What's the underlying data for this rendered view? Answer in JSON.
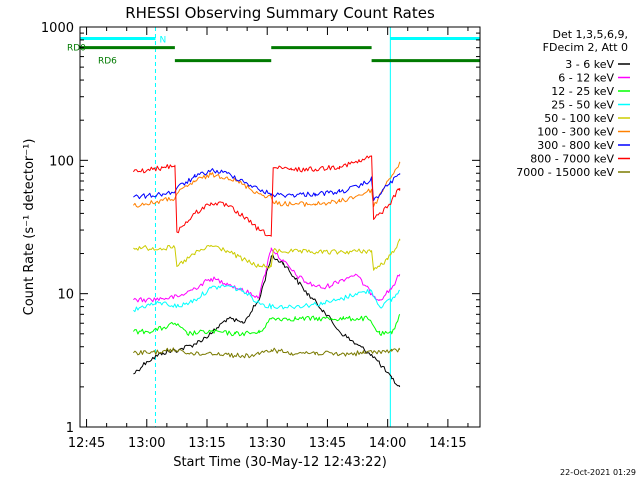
{
  "chart_data": {
    "type": "line",
    "title": "RHESSI Observing Summary Count Rates",
    "xlabel": "Start Time (30-May-12 12:43:22)",
    "ylabel": "Count Rate (s⁻¹ detector⁻¹)",
    "yscale": "log",
    "ylim": [
      1,
      1000
    ],
    "xlim": [
      "12:43:22",
      "14:23:00"
    ],
    "xticks": [
      "12:45",
      "13:00",
      "13:15",
      "13:30",
      "13:45",
      "14:00",
      "14:15"
    ],
    "yticks": [
      "1",
      "10",
      "100",
      "1000"
    ],
    "legend_header": [
      "Det 1,3,5,6,9,",
      "FDecim 2, Att 0"
    ],
    "legend_placement": "right",
    "timestamp": "22-Oct-2021 01:29",
    "night_intervals": [
      {
        "name": "N",
        "color": "#00ffff",
        "start": "12:43:22",
        "end": "13:02:10"
      },
      {
        "name": "",
        "color": "#00ffff",
        "start": "14:00:40",
        "end": "14:23:00"
      }
    ],
    "flags": [
      {
        "name": "RD0",
        "color": "#007a00",
        "level": 700,
        "intervals": [
          [
            "12:43:22",
            "13:07:00"
          ],
          [
            "13:31:00",
            "13:56:00"
          ]
        ]
      },
      {
        "name": "RD6",
        "color": "#007a00",
        "level": 560,
        "intervals": [
          [
            "13:07:00",
            "13:31:00"
          ],
          [
            "13:56:00",
            "14:23:00"
          ]
        ]
      }
    ],
    "data_gaps": [
      [
        "12:43:22",
        "12:56:30"
      ],
      [
        "14:03:30",
        "14:23:00"
      ]
    ],
    "series": [
      {
        "name": "3 - 6 keV",
        "color": "#000000",
        "x": [
          "12:56:40",
          "13:00",
          "13:04",
          "13:08",
          "13:12",
          "13:16",
          "13:20",
          "13:24",
          "13:28",
          "13:31",
          "13:34",
          "13:37",
          "13:40",
          "13:44",
          "13:48",
          "13:52",
          "13:56",
          "13:58",
          "14:01",
          "14:03"
        ],
        "values": [
          2.5,
          3.1,
          3.6,
          3.8,
          4.2,
          5.0,
          6.5,
          6.0,
          9.0,
          19.0,
          17.0,
          13.0,
          10.0,
          7.5,
          5.2,
          4.2,
          3.5,
          3.0,
          2.3,
          2.0
        ]
      },
      {
        "name": "6 - 12 keV",
        "color": "#ff00ff",
        "x": [
          "12:56:40",
          "13:00",
          "13:04",
          "13:08",
          "13:12",
          "13:16",
          "13:20",
          "13:24",
          "13:28",
          "13:31",
          "13:34",
          "13:37",
          "13:40",
          "13:44",
          "13:48",
          "13:52",
          "13:56",
          "13:58",
          "14:01",
          "14:03"
        ],
        "values": [
          9.0,
          9.0,
          9.2,
          9.5,
          11.0,
          13.0,
          12.0,
          10.5,
          9.5,
          22.0,
          17.5,
          14.0,
          12.0,
          11.0,
          12.5,
          14.0,
          10.0,
          9.0,
          11.0,
          14.0
        ]
      },
      {
        "name": "12 - 25 keV",
        "color": "#00ff00",
        "x": [
          "12:56:40",
          "13:00",
          "13:04",
          "13:07",
          "13:10",
          "13:16",
          "13:22",
          "13:28",
          "13:31",
          "13:37",
          "13:43",
          "13:49",
          "13:55",
          "13:58",
          "14:01",
          "14:03"
        ],
        "values": [
          5.2,
          5.2,
          5.5,
          6.0,
          5.0,
          5.2,
          5.0,
          5.1,
          6.5,
          6.5,
          6.5,
          6.5,
          6.5,
          5.0,
          5.0,
          7.0
        ]
      },
      {
        "name": "25 - 50 keV",
        "color": "#00ffff",
        "x": [
          "12:56:40",
          "13:00",
          "13:04",
          "13:08",
          "13:12",
          "13:16",
          "13:20",
          "13:24",
          "13:28",
          "13:31",
          "13:36",
          "13:40",
          "13:44",
          "13:48",
          "13:52",
          "13:56",
          "13:58",
          "14:01",
          "14:03"
        ],
        "values": [
          7.5,
          8.2,
          8.5,
          8.0,
          9.0,
          11.0,
          11.5,
          10.5,
          8.5,
          8.0,
          8.0,
          8.2,
          8.5,
          9.0,
          10.0,
          10.5,
          8.0,
          9.0,
          10.5
        ]
      },
      {
        "name": "50 - 100 keV",
        "color": "#cccc00",
        "x": [
          "12:56:40",
          "13:00",
          "13:07",
          "13:07:30",
          "13:12",
          "13:16",
          "13:20",
          "13:24",
          "13:28",
          "13:31",
          "13:31:30",
          "13:40",
          "13:48",
          "13:56",
          "13:56:30",
          "14:00",
          "14:03"
        ],
        "values": [
          22.0,
          22.0,
          22.0,
          16.0,
          20.0,
          23.0,
          21.0,
          18.0,
          16.0,
          16.0,
          21.0,
          20.5,
          20.5,
          21.0,
          15.0,
          18.0,
          25.0
        ]
      },
      {
        "name": "100 - 300 keV",
        "color": "#ff8000",
        "x": [
          "12:56:40",
          "13:00",
          "13:04",
          "13:07",
          "13:07:30",
          "13:12",
          "13:16",
          "13:20",
          "13:24",
          "13:28",
          "13:31",
          "13:31:30",
          "13:36",
          "13:42",
          "13:48",
          "13:53",
          "13:56",
          "13:56:30",
          "14:00",
          "14:03"
        ],
        "values": [
          46.0,
          47.0,
          50.0,
          52.0,
          56.0,
          70.0,
          78.0,
          75.0,
          66.0,
          56.0,
          53.0,
          48.0,
          47.0,
          47.0,
          49.0,
          55.0,
          60.0,
          45.0,
          70.0,
          95.0
        ]
      },
      {
        "name": "300 - 800 keV",
        "color": "#0000ff",
        "x": [
          "12:56:40",
          "13:00",
          "13:04",
          "13:07",
          "13:07:30",
          "13:12",
          "13:16",
          "13:20",
          "13:24",
          "13:28",
          "13:31",
          "13:31:30",
          "13:36",
          "13:42",
          "13:48",
          "13:53",
          "13:56",
          "13:56:30",
          "14:00",
          "14:03"
        ],
        "values": [
          53.0,
          54.0,
          56.0,
          58.0,
          62.0,
          75.0,
          84.0,
          80.0,
          70.0,
          60.0,
          56.0,
          55.0,
          55.0,
          56.0,
          58.0,
          64.0,
          72.0,
          50.0,
          65.0,
          80.0
        ]
      },
      {
        "name": "800 - 7000 keV",
        "color": "#ff0000",
        "x": [
          "12:56:40",
          "13:00",
          "13:04",
          "13:07",
          "13:07:30",
          "13:12",
          "13:16",
          "13:20",
          "13:24",
          "13:28",
          "13:31",
          "13:31:30",
          "13:36",
          "13:42",
          "13:48",
          "13:53",
          "13:56",
          "13:56:30",
          "14:00",
          "14:03"
        ],
        "values": [
          82.0,
          84.0,
          88.0,
          92.0,
          29.0,
          40.0,
          48.0,
          46.0,
          38.0,
          30.0,
          27.0,
          88.0,
          85.0,
          86.0,
          90.0,
          98.0,
          108.0,
          36.0,
          45.0,
          62.0
        ]
      },
      {
        "name": "7000 - 15000 keV",
        "color": "#7a7a00",
        "x": [
          "12:56:40",
          "13:00",
          "13:04",
          "13:08",
          "13:12",
          "13:16",
          "13:20",
          "13:24",
          "13:28",
          "13:31",
          "13:36",
          "13:42",
          "13:48",
          "13:54",
          "13:58",
          "14:01",
          "14:03"
        ],
        "values": [
          3.6,
          3.6,
          3.7,
          3.8,
          3.5,
          3.6,
          3.5,
          3.4,
          3.5,
          3.8,
          3.6,
          3.6,
          3.5,
          3.6,
          3.7,
          3.7,
          3.8
        ]
      }
    ]
  }
}
